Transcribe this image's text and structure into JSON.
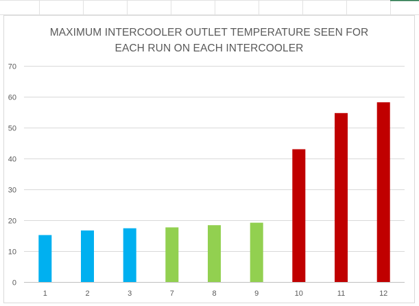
{
  "chart_data": {
    "type": "bar",
    "title_lines": [
      "MAXIMUM INTERCOOLER OUTLET TEMPERATURE SEEN FOR",
      "EACH RUN ON EACH INTERCOOLER"
    ],
    "categories": [
      "1",
      "2",
      "3",
      "7",
      "8",
      "9",
      "10",
      "11",
      "12"
    ],
    "values": [
      15.2,
      16.7,
      17.4,
      17.7,
      18.4,
      19.2,
      43.0,
      54.7,
      58.2
    ],
    "bar_colors": [
      "#00b0f0",
      "#00b0f0",
      "#00b0f0",
      "#92d050",
      "#92d050",
      "#92d050",
      "#c00000",
      "#c00000",
      "#c00000"
    ],
    "ylim": [
      0,
      70
    ],
    "y_ticks": [
      "0",
      "10",
      "20",
      "30",
      "40",
      "50",
      "60",
      "70"
    ],
    "grid": true,
    "xlabel": "",
    "ylabel": ""
  }
}
